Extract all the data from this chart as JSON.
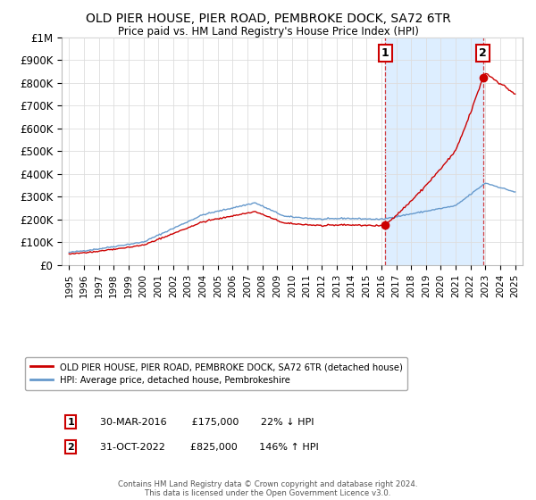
{
  "title": "OLD PIER HOUSE, PIER ROAD, PEMBROKE DOCK, SA72 6TR",
  "subtitle": "Price paid vs. HM Land Registry's House Price Index (HPI)",
  "legend_property": "OLD PIER HOUSE, PIER ROAD, PEMBROKE DOCK, SA72 6TR (detached house)",
  "legend_hpi": "HPI: Average price, detached house, Pembrokeshire",
  "sale1_label": "1",
  "sale1_date": "30-MAR-2016",
  "sale1_price": "£175,000",
  "sale1_pct": "22% ↓ HPI",
  "sale1_year": 2016.25,
  "sale1_value": 175000,
  "sale2_label": "2",
  "sale2_date": "31-OCT-2022",
  "sale2_price": "£825,000",
  "sale2_pct": "146% ↑ HPI",
  "sale2_year": 2022.83,
  "sale2_value": 825000,
  "footer": "Contains HM Land Registry data © Crown copyright and database right 2024.\nThis data is licensed under the Open Government Licence v3.0.",
  "ylim": [
    0,
    1000000
  ],
  "yticks": [
    0,
    100000,
    200000,
    300000,
    400000,
    500000,
    600000,
    700000,
    800000,
    900000,
    1000000
  ],
  "ytick_labels": [
    "£0",
    "£100K",
    "£200K",
    "£300K",
    "£400K",
    "£500K",
    "£600K",
    "£700K",
    "£800K",
    "£900K",
    "£1M"
  ],
  "xlim_start": 1994.5,
  "xlim_end": 2025.5,
  "property_color": "#cc0000",
  "hpi_color": "#6699cc",
  "shade_color": "#ddeeff",
  "background_color": "#ffffff",
  "grid_color": "#dddddd"
}
